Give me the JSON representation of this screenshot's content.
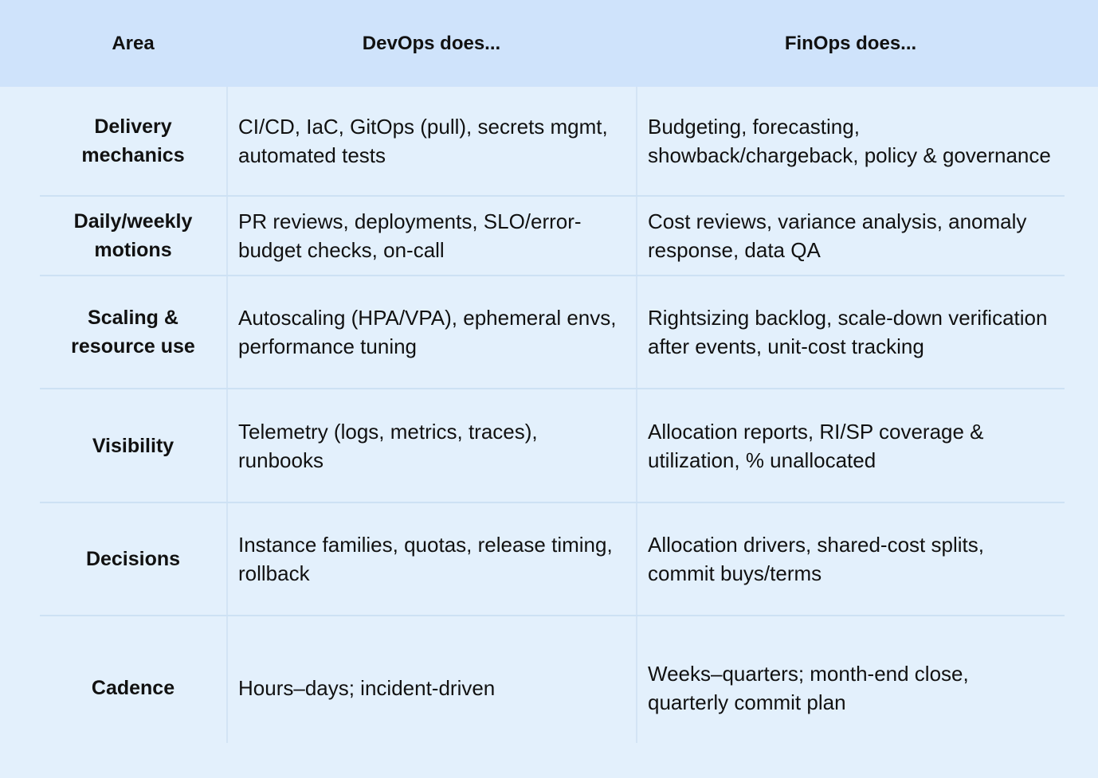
{
  "header": {
    "area": "Area",
    "devops": "DevOps does...",
    "finops": "FinOps does..."
  },
  "rows": [
    {
      "area": "Delivery mechanics",
      "devops": "CI/CD, IaC, GitOps (pull), secrets mgmt, automated tests",
      "finops": "Budgeting, forecasting, showback/chargeback, policy & governance"
    },
    {
      "area": "Daily/weekly motions",
      "devops": "PR reviews, deployments, SLO/error-budget checks, on-call",
      "finops": "Cost reviews, variance analysis, anomaly response, data QA"
    },
    {
      "area": "Scaling & resource use",
      "devops": "Autoscaling (HPA/VPA), ephemeral envs, performance tuning",
      "finops": "Rightsizing backlog, scale-down verification after events, unit-cost tracking"
    },
    {
      "area": "Visibility",
      "devops": "Telemetry (logs, metrics, traces), runbooks",
      "finops": "Allocation reports, RI/SP coverage & utilization, % unallocated"
    },
    {
      "area": "Decisions",
      "devops": "Instance families, quotas, release timing, rollback",
      "finops": "Allocation drivers, shared-cost splits, commit buys/terms"
    },
    {
      "area": "Cadence",
      "devops": "Hours–days; incident-driven",
      "finops": "Weeks–quarters; month-end close, quarterly commit plan"
    }
  ]
}
